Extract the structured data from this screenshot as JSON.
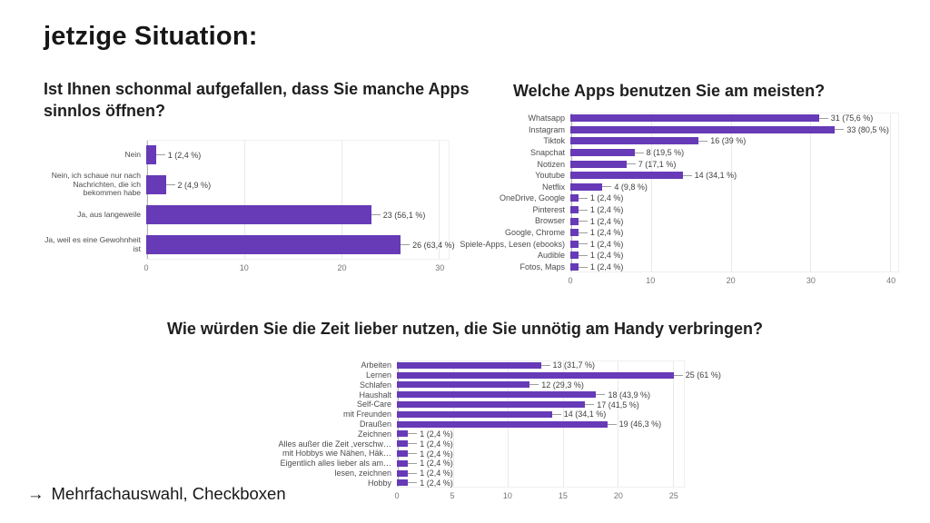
{
  "slide": {
    "title": "jetzige Situation:",
    "note_arrow": "→",
    "note": "Mehrfachauswahl, Checkboxen"
  },
  "theme": {
    "bar_color": "#673ab7",
    "grid_color": "#e9e9e9",
    "zero_axis_color": "#b3b3b3",
    "label_color": "#4d4d4d",
    "tick_color": "#757575"
  },
  "chart_data": [
    {
      "type": "bar",
      "orientation": "horizontal",
      "title": "Ist Ihnen schonmal aufgefallen, dass Sie manche Apps sinnlos öffnen?",
      "xlabel": "",
      "ylabel": "",
      "xlim": [
        0,
        31
      ],
      "ticks": [
        0,
        10,
        20,
        30
      ],
      "grid": true,
      "legend": "none",
      "rows": [
        {
          "label": "Nein",
          "value": 1,
          "value_label": "1 (2,4 %)"
        },
        {
          "label": "Nein, ich schaue nur nach Nachrichten, die ich bekommen habe",
          "value": 2,
          "value_label": "2 (4,9 %)"
        },
        {
          "label": "Ja, aus langeweile",
          "value": 23,
          "value_label": "23 (56,1 %)"
        },
        {
          "label": "Ja, weil es eine Gewohnheit ist",
          "value": 26,
          "value_label": "26 (63,4 %)"
        }
      ]
    },
    {
      "type": "bar",
      "orientation": "horizontal",
      "title": "Welche Apps benutzen Sie am meisten?",
      "xlabel": "",
      "ylabel": "",
      "xlim": [
        0,
        41
      ],
      "ticks": [
        0,
        10,
        20,
        30,
        40
      ],
      "grid": true,
      "legend": "none",
      "rows": [
        {
          "label": "Whatsapp",
          "value": 31,
          "value_label": "31 (75,6 %)"
        },
        {
          "label": "Instagram",
          "value": 33,
          "value_label": "33 (80,5 %)"
        },
        {
          "label": "Tiktok",
          "value": 16,
          "value_label": "16 (39 %)"
        },
        {
          "label": "Snapchat",
          "value": 8,
          "value_label": "8 (19,5 %)"
        },
        {
          "label": "Notizen",
          "value": 7,
          "value_label": "7 (17,1 %)"
        },
        {
          "label": "Youtube",
          "value": 14,
          "value_label": "14 (34,1 %)"
        },
        {
          "label": "Netflix",
          "value": 4,
          "value_label": "4 (9,8 %)"
        },
        {
          "label": "OneDrive, Google",
          "value": 1,
          "value_label": "1 (2,4 %)"
        },
        {
          "label": "Pinterest",
          "value": 1,
          "value_label": "1 (2,4 %)"
        },
        {
          "label": "Browser",
          "value": 1,
          "value_label": "1 (2,4 %)"
        },
        {
          "label": "Google, Chrome",
          "value": 1,
          "value_label": "1 (2,4 %)"
        },
        {
          "label": "Spiele-Apps, Lesen (ebooks)",
          "value": 1,
          "value_label": "1 (2,4 %)"
        },
        {
          "label": "Audible",
          "value": 1,
          "value_label": "1 (2,4 %)"
        },
        {
          "label": "Fotos, Maps",
          "value": 1,
          "value_label": "1 (2,4 %)"
        }
      ]
    },
    {
      "type": "bar",
      "orientation": "horizontal",
      "title": "Wie würden Sie die Zeit lieber nutzen, die Sie unnötig am Handy verbringen?",
      "xlabel": "",
      "ylabel": "",
      "xlim": [
        0,
        26
      ],
      "ticks": [
        0,
        5,
        10,
        15,
        20,
        25
      ],
      "grid": true,
      "legend": "none",
      "rows": [
        {
          "label": "Arbeiten",
          "value": 13,
          "value_label": "13 (31,7 %)"
        },
        {
          "label": "Lernen",
          "value": 25,
          "value_label": "25 (61 %)"
        },
        {
          "label": "Schlafen",
          "value": 12,
          "value_label": "12 (29,3 %)"
        },
        {
          "label": "Haushalt",
          "value": 18,
          "value_label": "18 (43,9 %)"
        },
        {
          "label": "Self-Care",
          "value": 17,
          "value_label": "17 (41,5 %)"
        },
        {
          "label": "mit Freunden",
          "value": 14,
          "value_label": "14 (34,1 %)"
        },
        {
          "label": "Draußen",
          "value": 19,
          "value_label": "19 (46,3 %)"
        },
        {
          "label": "Zeichnen",
          "value": 1,
          "value_label": "1 (2,4 %)"
        },
        {
          "label": "Alles außer die Zeit ,verschw…",
          "value": 1,
          "value_label": "1 (2,4 %)"
        },
        {
          "label": "mit Hobbys wie Nähen, Häk…",
          "value": 1,
          "value_label": "1 (2,4 %)"
        },
        {
          "label": "Eigentlich alles lieber als am…",
          "value": 1,
          "value_label": "1 (2,4 %)"
        },
        {
          "label": "lesen, zeichnen",
          "value": 1,
          "value_label": "1 (2,4 %)"
        },
        {
          "label": "Hobby",
          "value": 1,
          "value_label": "1 (2,4 %)"
        }
      ]
    }
  ]
}
